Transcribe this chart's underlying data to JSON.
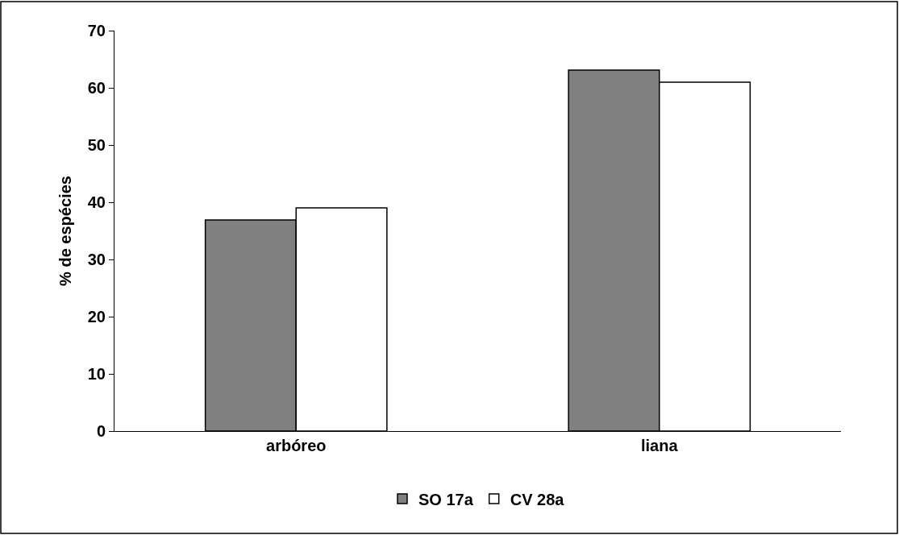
{
  "chart_data": {
    "type": "bar",
    "ylabel": "% de espécies",
    "categories": [
      "arbóreo",
      "liana"
    ],
    "series": [
      {
        "name": "SO 17a",
        "color": "#808080",
        "values": [
          36.9,
          63.1
        ]
      },
      {
        "name": "CV 28a",
        "color": "#ffffff",
        "values": [
          39.0,
          61.0
        ]
      }
    ],
    "ylim": [
      0,
      70
    ],
    "yticks": [
      0,
      10,
      20,
      30,
      40,
      50,
      60,
      70
    ],
    "grid": false,
    "legend": "bottom"
  }
}
